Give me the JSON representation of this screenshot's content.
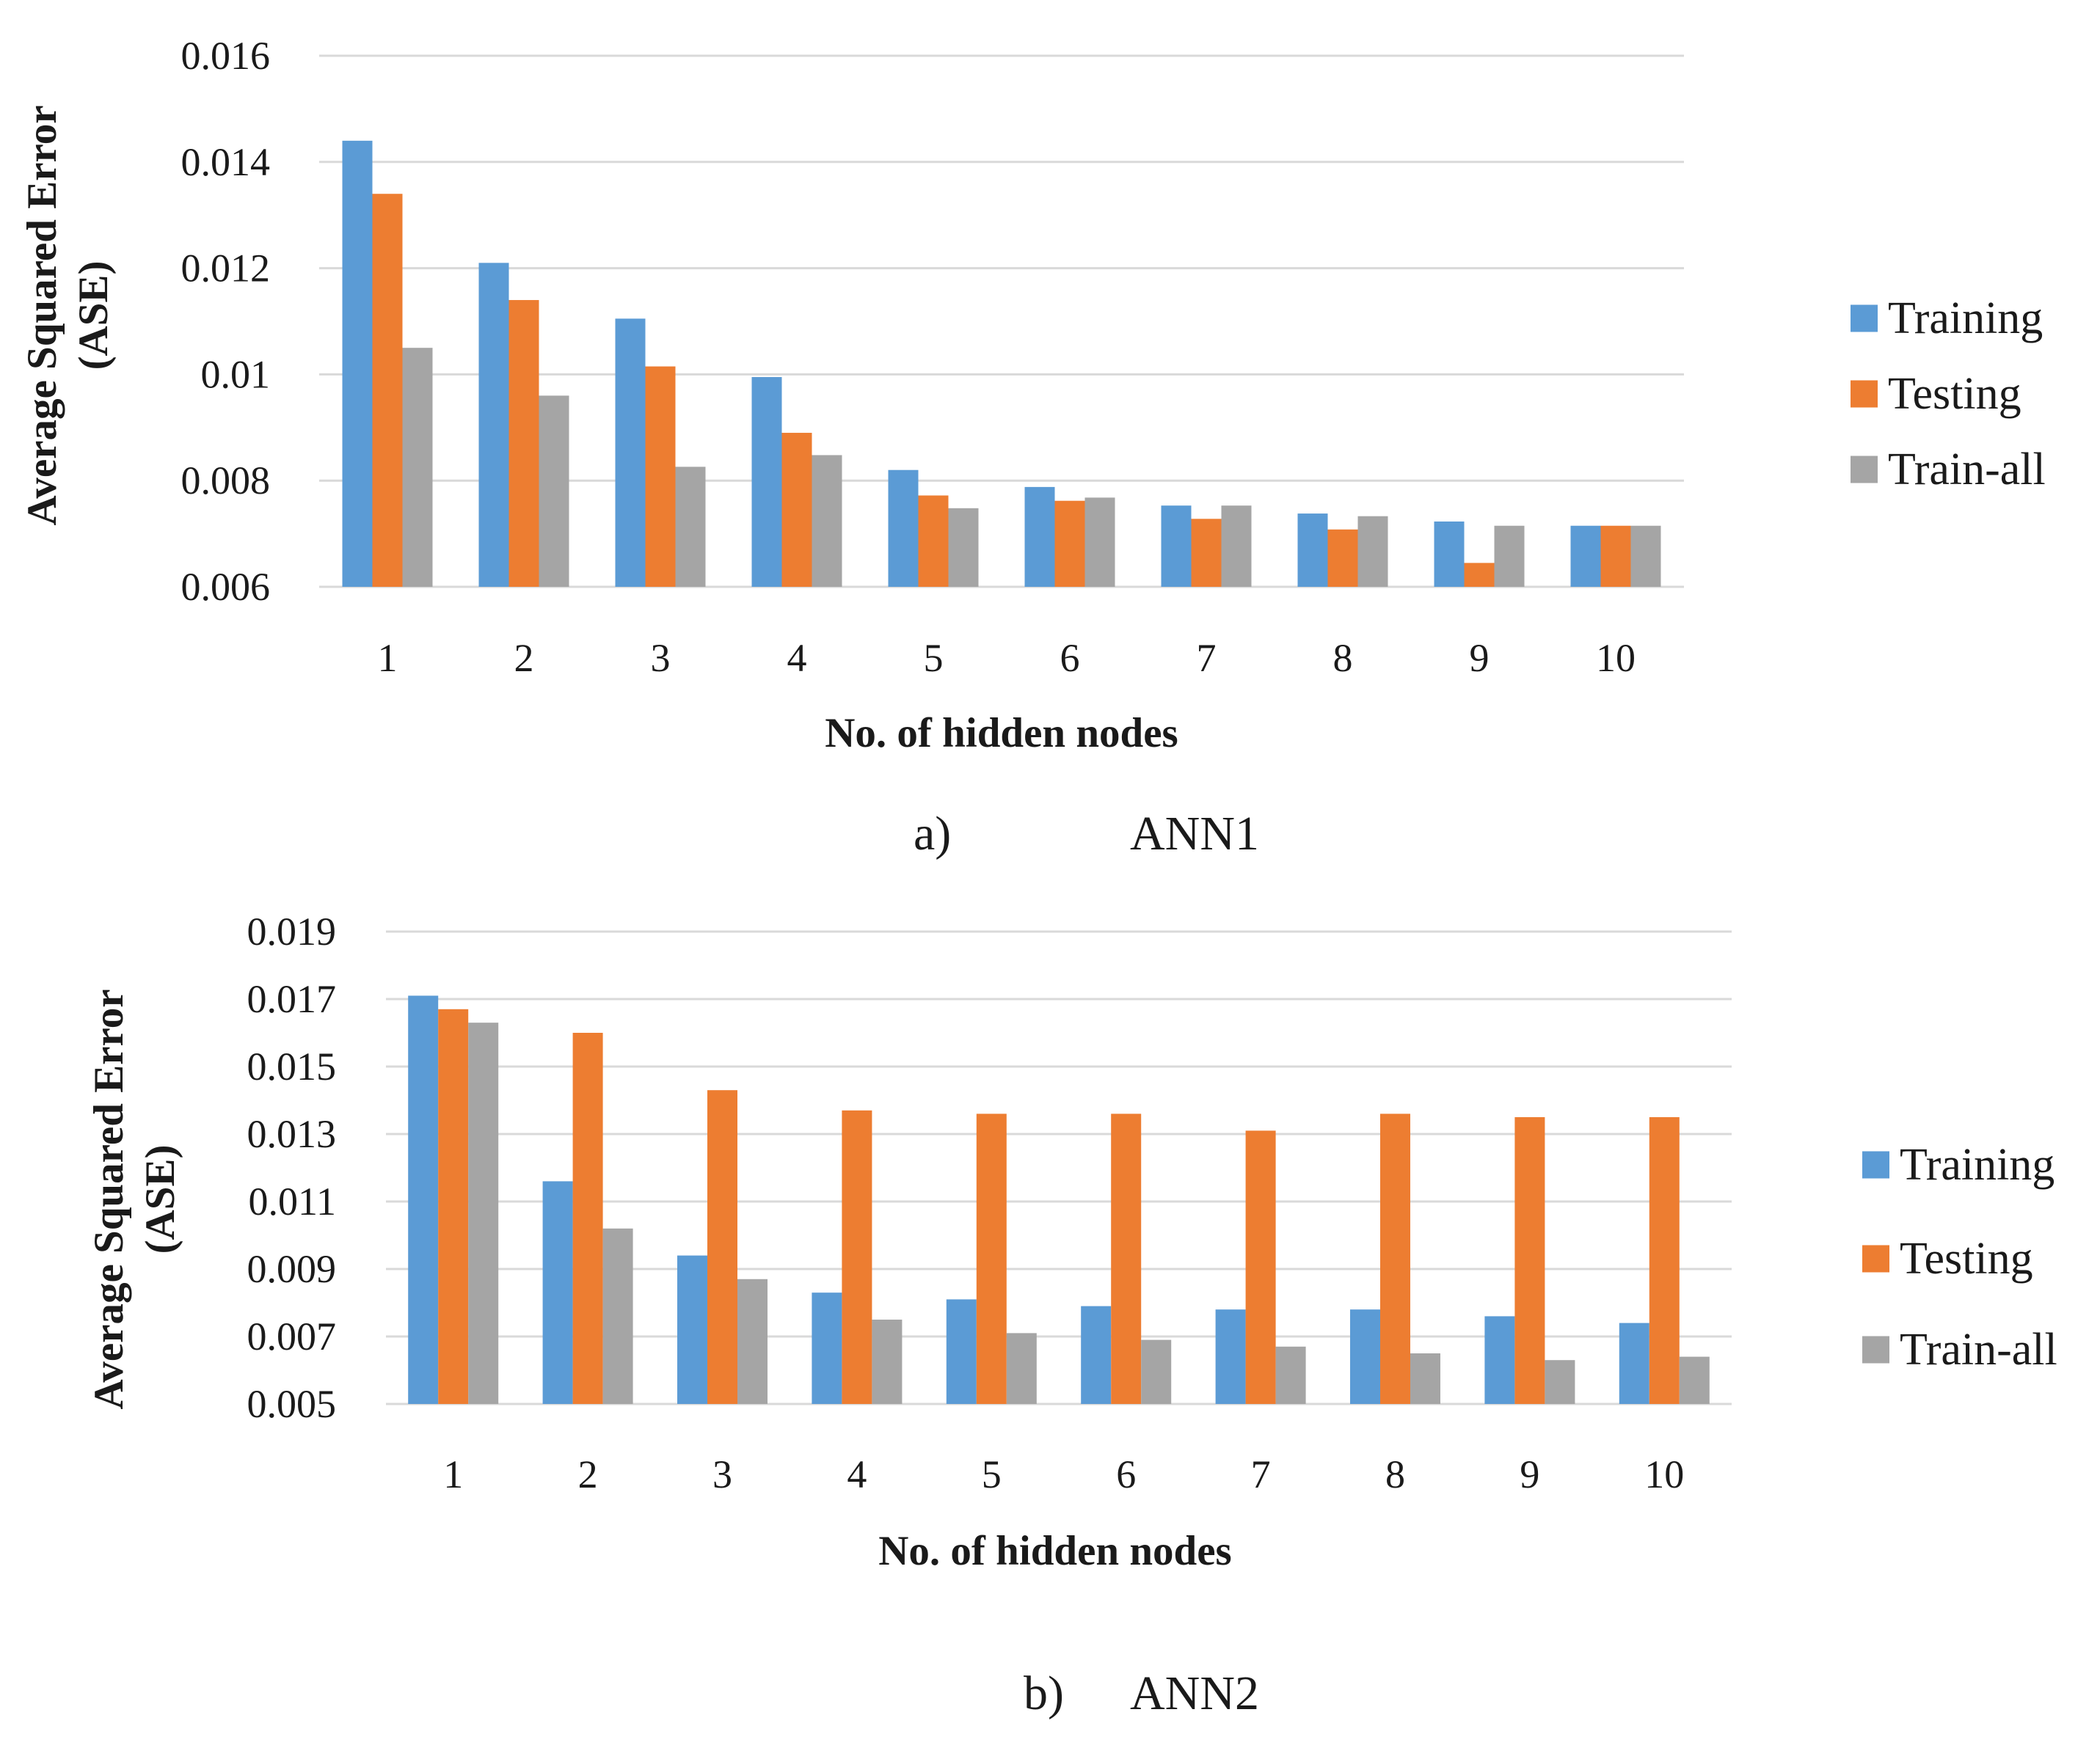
{
  "colors": {
    "training": "#5b9bd5",
    "testing": "#ed7d31",
    "train_all": "#a5a5a5",
    "grid": "#d9d9d9"
  },
  "chart_data": [
    {
      "type": "bar",
      "caption_letter": "a)",
      "caption_name": "ANN1",
      "xlabel": "No. of hidden nodes",
      "ylabel_line1": "Average Squared Error",
      "ylabel_line2": "(ASE)",
      "ylim": [
        0.006,
        0.016
      ],
      "yticks": [
        {
          "value": 0.006,
          "label": "0.006"
        },
        {
          "value": 0.008,
          "label": "0.008"
        },
        {
          "value": 0.01,
          "label": "0.01"
        },
        {
          "value": 0.012,
          "label": "0.012"
        },
        {
          "value": 0.014,
          "label": "0.014"
        },
        {
          "value": 0.016,
          "label": "0.016"
        }
      ],
      "categories": [
        "1",
        "2",
        "3",
        "4",
        "5",
        "6",
        "7",
        "8",
        "9",
        "10"
      ],
      "series": [
        {
          "name": "Training",
          "color_key": "training",
          "values": [
            0.0144,
            0.0121,
            0.01105,
            0.00995,
            0.0082,
            0.00788,
            0.00753,
            0.00738,
            0.00723,
            0.00715
          ]
        },
        {
          "name": "Testing",
          "color_key": "testing",
          "values": [
            0.0134,
            0.0114,
            0.01015,
            0.0089,
            0.00772,
            0.00762,
            0.00728,
            0.00708,
            0.00645,
            0.00715
          ]
        },
        {
          "name": "Train-all",
          "color_key": "train_all",
          "values": [
            0.0105,
            0.0096,
            0.00826,
            0.00848,
            0.00748,
            0.00768,
            0.00753,
            0.00733,
            0.00715,
            0.00715
          ]
        }
      ]
    },
    {
      "type": "bar",
      "caption_letter": "b)",
      "caption_name": "ANN2",
      "xlabel": "No. of hidden nodes",
      "ylabel_line1": "Average Squared Error",
      "ylabel_line2": "(ASE)",
      "ylim": [
        0.005,
        0.019
      ],
      "yticks": [
        {
          "value": 0.005,
          "label": "0.005"
        },
        {
          "value": 0.007,
          "label": "0.007"
        },
        {
          "value": 0.009,
          "label": "0.009"
        },
        {
          "value": 0.011,
          "label": "0.011"
        },
        {
          "value": 0.013,
          "label": "0.013"
        },
        {
          "value": 0.015,
          "label": "0.015"
        },
        {
          "value": 0.017,
          "label": "0.017"
        },
        {
          "value": 0.019,
          "label": "0.019"
        }
      ],
      "categories": [
        "1",
        "2",
        "3",
        "4",
        "5",
        "6",
        "7",
        "8",
        "9",
        "10"
      ],
      "series": [
        {
          "name": "Training",
          "color_key": "training",
          "values": [
            0.0171,
            0.0116,
            0.0094,
            0.0083,
            0.0081,
            0.0079,
            0.0078,
            0.0078,
            0.0076,
            0.0074
          ]
        },
        {
          "name": "Testing",
          "color_key": "testing",
          "values": [
            0.0167,
            0.016,
            0.0143,
            0.0137,
            0.0136,
            0.0136,
            0.0131,
            0.0136,
            0.0135,
            0.0135
          ]
        },
        {
          "name": "Train-all",
          "color_key": "train_all",
          "values": [
            0.0163,
            0.0102,
            0.0087,
            0.0075,
            0.0071,
            0.0069,
            0.0067,
            0.0065,
            0.0063,
            0.0064
          ]
        }
      ]
    }
  ]
}
